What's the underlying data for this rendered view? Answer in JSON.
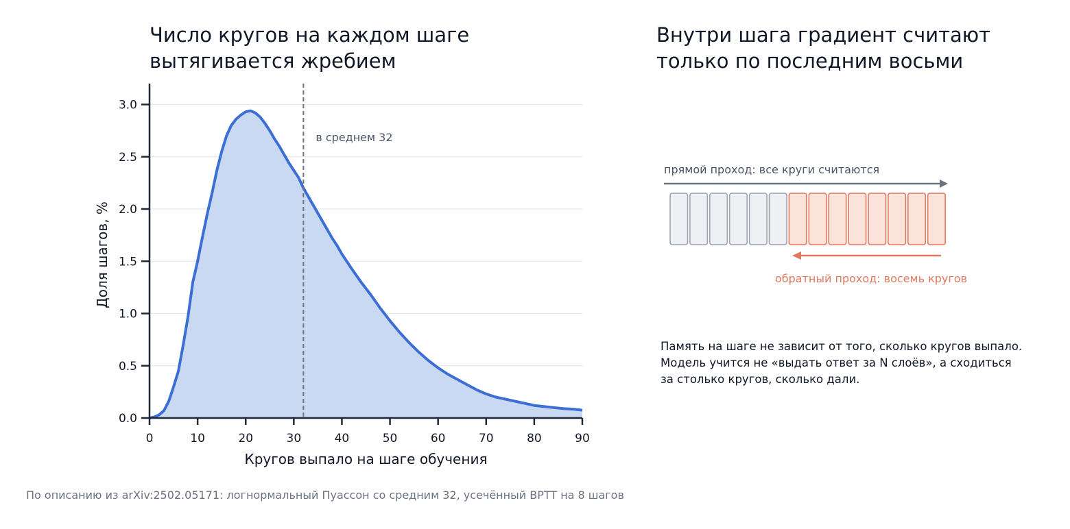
{
  "left_panel": {
    "title_line1": "Число кругов на каждом шаге",
    "title_line2": "вытягивается жребием"
  },
  "right_panel": {
    "title_line1": "Внутри шага градиент считают",
    "title_line2": "только по последним восьми",
    "forward_label": "прямой проход: все круги считаются",
    "backward_label": "обратный проход: восемь кругов",
    "total_blocks": 14,
    "backprop_blocks": 8,
    "note_lines": [
      "Память на шаге не зависит от того, сколько кругов выпало.",
      "Модель учится не «выдать ответ за N слоёв», а сходиться",
      "за столько кругов, сколько дали."
    ],
    "colors": {
      "forward_block_fill": "#eef0f3",
      "forward_block_stroke": "#9ca3af",
      "backward_block_fill": "#fbe3dc",
      "backward_block_stroke": "#e07a5f",
      "forward_arrow": "#6b7280",
      "backward_arrow": "#e07a5f"
    }
  },
  "footer": "По описанию из arXiv:2502.05171: логнормальный Пуассон со средним 32, усечённый BPTT на 8 шагов",
  "chart_data": {
    "type": "area",
    "xlabel": "Кругов выпало на шаге обучения",
    "ylabel": "Доля шагов, %",
    "xlim": [
      0,
      90
    ],
    "ylim": [
      0,
      3.2
    ],
    "xticks": [
      0,
      10,
      20,
      30,
      40,
      50,
      60,
      70,
      80,
      90
    ],
    "yticks": [
      0.0,
      0.5,
      1.0,
      1.5,
      2.0,
      2.5,
      3.0
    ],
    "grid": "horizontal",
    "colors": {
      "line": "#3b6fd4",
      "fill": "#cad9f2",
      "mean_line": "#6b7280",
      "axis": "#1f2937",
      "grid": "#e5e7eb"
    },
    "mean": {
      "x": 32,
      "label": "в среднем 32"
    },
    "series": [
      {
        "x": [
          0,
          1,
          2,
          3,
          4,
          5,
          6,
          7,
          8,
          9,
          10,
          11,
          12,
          13,
          14,
          15,
          16,
          17,
          18,
          19,
          20,
          21,
          22,
          23,
          24,
          25,
          26,
          27,
          28,
          29,
          30,
          31,
          32,
          33,
          34,
          35,
          36,
          37,
          38,
          39,
          40,
          42,
          44,
          46,
          48,
          50,
          52,
          54,
          56,
          58,
          60,
          62,
          64,
          66,
          68,
          70,
          72,
          74,
          76,
          78,
          80,
          82,
          84,
          86,
          88,
          90
        ],
        "y": [
          0.0,
          0.01,
          0.03,
          0.07,
          0.16,
          0.3,
          0.45,
          0.7,
          0.97,
          1.3,
          1.5,
          1.73,
          1.95,
          2.15,
          2.37,
          2.55,
          2.7,
          2.8,
          2.86,
          2.9,
          2.93,
          2.94,
          2.92,
          2.88,
          2.82,
          2.75,
          2.67,
          2.6,
          2.52,
          2.44,
          2.37,
          2.3,
          2.2,
          2.12,
          2.04,
          1.96,
          1.88,
          1.8,
          1.72,
          1.65,
          1.57,
          1.43,
          1.3,
          1.18,
          1.05,
          0.93,
          0.82,
          0.72,
          0.63,
          0.55,
          0.48,
          0.42,
          0.37,
          0.32,
          0.27,
          0.23,
          0.2,
          0.18,
          0.16,
          0.14,
          0.12,
          0.11,
          0.1,
          0.09,
          0.085,
          0.075
        ]
      }
    ]
  }
}
